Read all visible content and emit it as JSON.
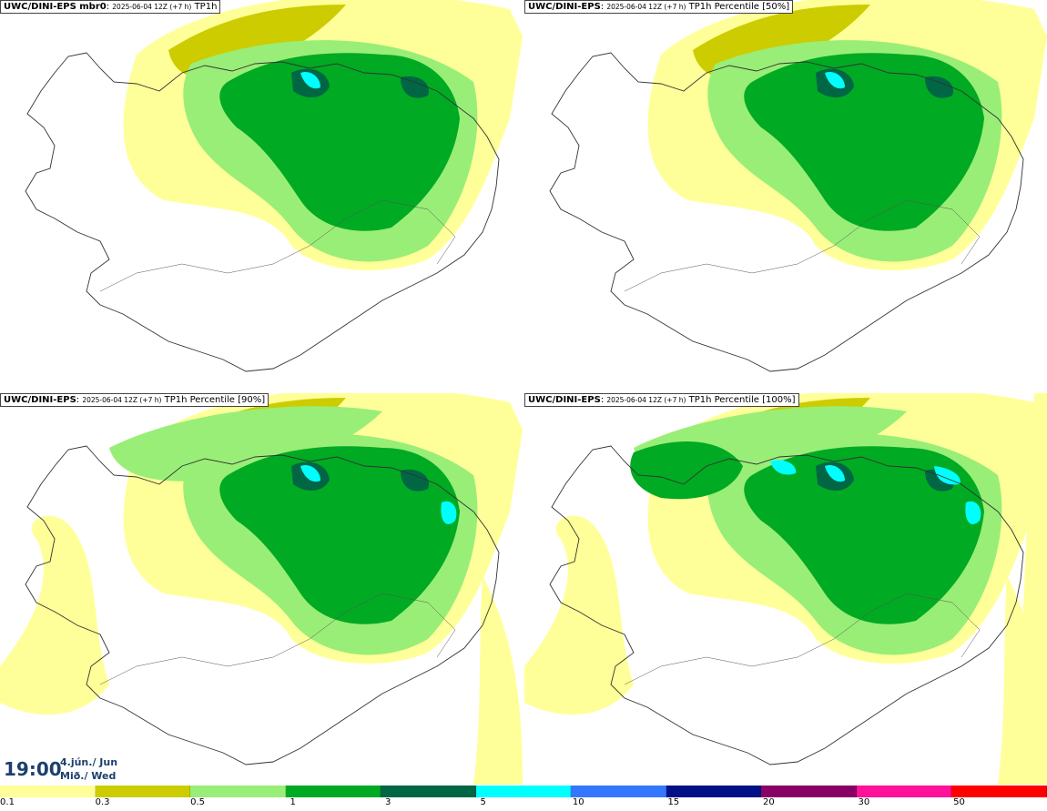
{
  "panels": [
    {
      "source": "UWC/DINI-EPS mbr0",
      "meta": "2025-06-04 12Z (+7 h)",
      "field": "TP1h",
      "intensity": 1
    },
    {
      "source": "UWC/DINI-EPS",
      "meta": "2025-06-04 12Z (+7 h)",
      "field": "TP1h Percentile [50%]",
      "intensity": 1
    },
    {
      "source": "UWC/DINI-EPS",
      "meta": "2025-06-04 12Z (+7 h)",
      "field": "TP1h Percentile [90%]",
      "intensity": 2
    },
    {
      "source": "UWC/DINI-EPS",
      "meta": "2025-06-04 12Z (+7 h)",
      "field": "TP1h Percentile [100%]",
      "intensity": 3
    }
  ],
  "time": {
    "clock": "19:00",
    "date_line1": "4.jún./ Jun",
    "date_line2": "Mið./ Wed"
  },
  "legend": {
    "colors": [
      "#ffff99",
      "#cccc00",
      "#99ee77",
      "#00aa22",
      "#006644",
      "#00ffff",
      "#3377ff",
      "#001188",
      "#880066",
      "#ff1199",
      "#ff0000"
    ],
    "labels": [
      "0.1",
      "0.3",
      "0.5",
      "1",
      "3",
      "5",
      "10",
      "15",
      "20",
      "30",
      "50"
    ]
  }
}
